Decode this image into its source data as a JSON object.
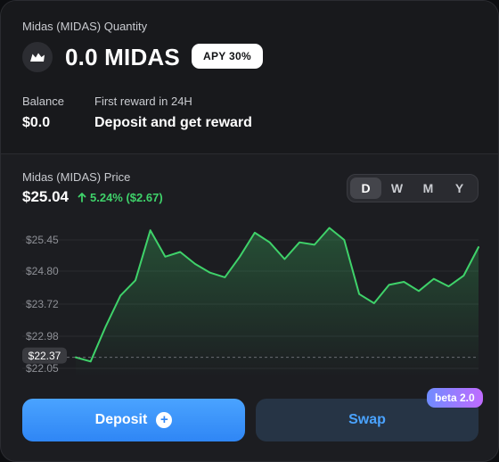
{
  "token": {
    "quantity_label": "Midas (MIDAS) Quantity",
    "amount": "0.0 MIDAS",
    "apy_badge": "APY 30%",
    "logo_icon": "midas-crown-icon"
  },
  "balance": {
    "label": "Balance",
    "value": "$0.0"
  },
  "reward": {
    "label": "First reward in 24H",
    "value": "Deposit and get reward"
  },
  "price": {
    "label": "Midas (MIDAS) Price",
    "value": "$25.04",
    "change": "5.24% ($2.67)",
    "change_icon": "arrow-up-icon",
    "change_color": "#3fd26a"
  },
  "range": {
    "options": [
      "D",
      "W",
      "M",
      "Y"
    ],
    "selected": "D"
  },
  "chart_data": {
    "type": "area",
    "y_ticks": [
      "$25.45",
      "$24.80",
      "$23.72",
      "$22.98",
      "$22.05"
    ],
    "current_marker": "$22.37",
    "y_axis_values": [
      25.45,
      24.8,
      23.72,
      22.98,
      22.05
    ],
    "values": [
      22.37,
      22.25,
      23.2,
      24.0,
      24.5,
      25.65,
      25.1,
      25.2,
      24.95,
      24.75,
      24.6,
      25.1,
      25.6,
      25.4,
      25.05,
      25.4,
      25.35,
      25.7,
      25.45,
      24.05,
      23.75,
      24.35,
      24.45,
      24.15,
      24.55,
      24.3,
      24.65,
      25.3
    ],
    "line_color": "#3fd26a",
    "grid": true
  },
  "actions": {
    "deposit_label": "Deposit",
    "deposit_icon": "plus-circle-icon",
    "swap_label": "Swap",
    "swap_badge": "beta 2.0"
  }
}
